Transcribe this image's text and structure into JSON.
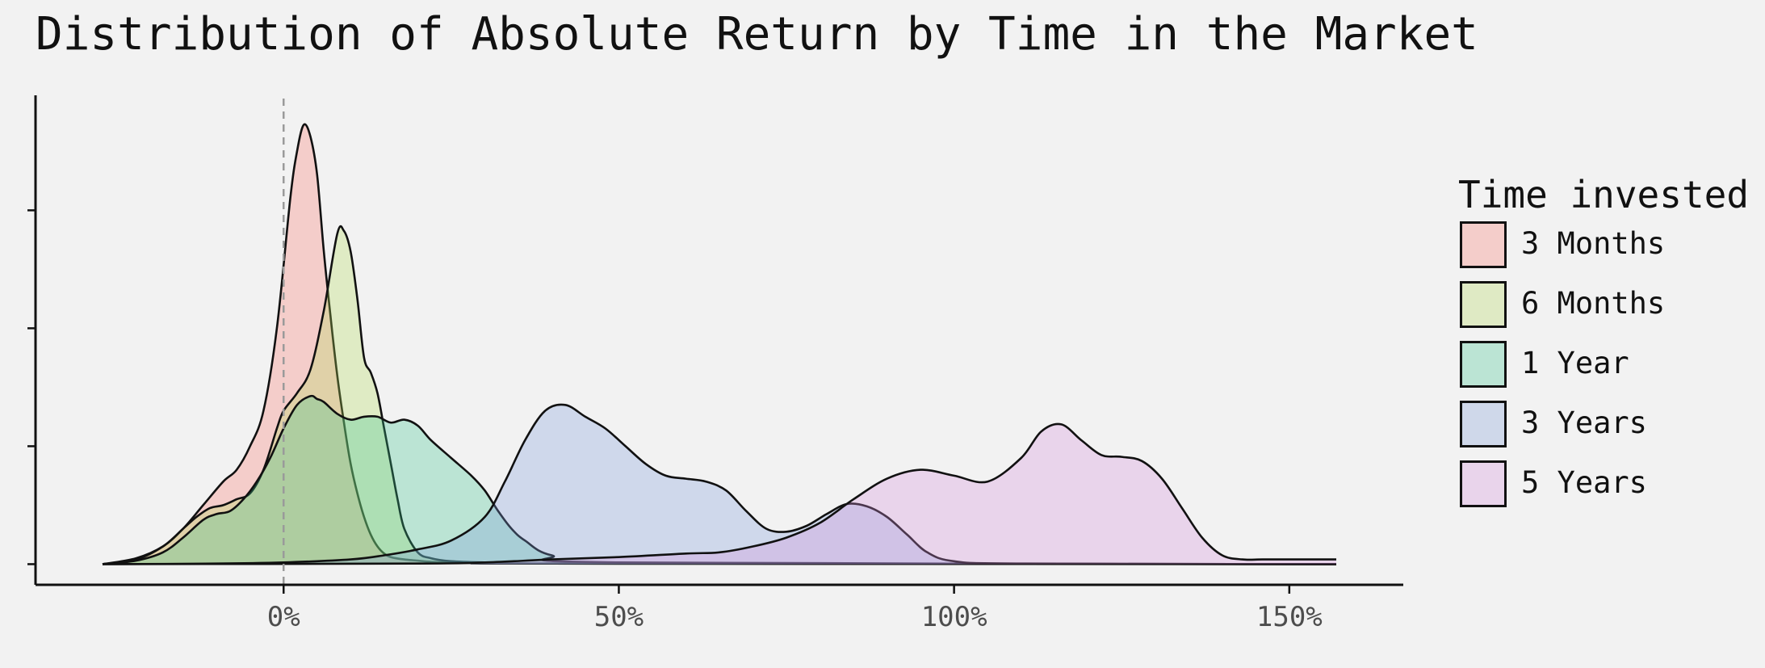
{
  "chart_data": {
    "type": "area",
    "title": "Distribution of Absolute Return by Time in the Market",
    "xlabel": "",
    "ylabel": "",
    "x_tick_labels": [
      "0%",
      "50%",
      "100%",
      "150%"
    ],
    "x_ticks": [
      0,
      50,
      100,
      150
    ],
    "xlim": [
      -37,
      167
    ],
    "ylim": [
      -0.0035,
      0.0795
    ],
    "y_ticks": [
      0,
      0.02,
      0.04,
      0.06
    ],
    "y_tick_labels_shown": false,
    "reference_line": {
      "x": 0,
      "style": "dashed"
    },
    "grid": false,
    "legend": {
      "title": "Time invested",
      "position": "right"
    },
    "series": [
      {
        "name": "3 Months",
        "color": "#F8766D",
        "x": [
          -27,
          -22,
          -18,
          -15,
          -12,
          -9,
          -7,
          -5,
          -3,
          -1,
          1,
          2,
          3,
          4,
          5,
          6,
          7,
          8,
          9,
          10,
          11,
          12,
          13,
          14,
          15,
          16,
          18,
          20,
          22,
          25,
          30,
          40,
          157
        ],
        "y": [
          0,
          0.001,
          0.003,
          0.006,
          0.01,
          0.014,
          0.016,
          0.02,
          0.026,
          0.04,
          0.062,
          0.07,
          0.0745,
          0.0725,
          0.066,
          0.053,
          0.042,
          0.032,
          0.024,
          0.017,
          0.012,
          0.008,
          0.005,
          0.003,
          0.0018,
          0.0012,
          0.0008,
          0.0006,
          0.0004,
          0.0003,
          0.0002,
          0.0001,
          0
        ]
      },
      {
        "name": "6 Months",
        "color": "#B4D95A",
        "x": [
          -27,
          -22,
          -18,
          -15,
          -13,
          -11,
          -9,
          -7,
          -5,
          -3,
          -1,
          0,
          2,
          4,
          6,
          8,
          9,
          10,
          11,
          12,
          13,
          14,
          15,
          16,
          17,
          18,
          20,
          22,
          25,
          30,
          40,
          157
        ],
        "y": [
          0,
          0.0008,
          0.003,
          0.006,
          0.008,
          0.0095,
          0.01,
          0.011,
          0.012,
          0.016,
          0.023,
          0.026,
          0.029,
          0.033,
          0.043,
          0.056,
          0.0565,
          0.053,
          0.045,
          0.035,
          0.0325,
          0.029,
          0.023,
          0.017,
          0.011,
          0.006,
          0.002,
          0.001,
          0.0005,
          0.0003,
          0.0001,
          0
        ]
      },
      {
        "name": "1 Year",
        "color": "#3CC48E",
        "x": [
          -27,
          -22,
          -18,
          -15,
          -12,
          -10,
          -8,
          -6,
          -4,
          -2,
          0,
          2,
          4,
          5,
          6,
          8,
          10,
          12,
          14,
          16,
          18,
          20,
          22,
          25,
          28,
          30,
          32,
          34,
          36,
          40,
          50,
          157
        ],
        "y": [
          0,
          0.0006,
          0.002,
          0.0045,
          0.0075,
          0.0085,
          0.009,
          0.011,
          0.014,
          0.018,
          0.023,
          0.027,
          0.0285,
          0.028,
          0.0275,
          0.0255,
          0.0245,
          0.025,
          0.025,
          0.024,
          0.0245,
          0.0235,
          0.021,
          0.018,
          0.015,
          0.0125,
          0.009,
          0.006,
          0.004,
          0.0015,
          0.0003,
          0
        ]
      },
      {
        "name": "3 Years",
        "color": "#7E9CD9",
        "x": [
          -27,
          -10,
          0,
          10,
          15,
          20,
          25,
          30,
          33,
          36,
          39,
          42,
          45,
          48,
          51,
          54,
          57,
          60,
          63,
          66,
          69,
          72,
          75,
          78,
          81,
          84,
          87,
          90,
          93,
          96,
          100,
          110,
          157
        ],
        "y": [
          0,
          0.0001,
          0.0003,
          0.0008,
          0.0015,
          0.0025,
          0.004,
          0.008,
          0.014,
          0.021,
          0.026,
          0.027,
          0.025,
          0.023,
          0.02,
          0.017,
          0.015,
          0.0145,
          0.014,
          0.0125,
          0.009,
          0.006,
          0.0055,
          0.0065,
          0.0085,
          0.0102,
          0.0098,
          0.008,
          0.005,
          0.002,
          0.0005,
          0.0001,
          0
        ]
      },
      {
        "name": "5 Years",
        "color": "#D48EDB",
        "x": [
          -27,
          20,
          30,
          40,
          50,
          60,
          65,
          70,
          75,
          80,
          85,
          90,
          95,
          100,
          105,
          110,
          113,
          116,
          119,
          122,
          125,
          128,
          131,
          134,
          137,
          140,
          143,
          146,
          150,
          154,
          157
        ],
        "y": [
          0,
          0.0001,
          0.0003,
          0.0008,
          0.0012,
          0.0018,
          0.002,
          0.003,
          0.0045,
          0.007,
          0.011,
          0.0145,
          0.016,
          0.015,
          0.014,
          0.018,
          0.0225,
          0.0237,
          0.021,
          0.0185,
          0.0182,
          0.0175,
          0.0145,
          0.0095,
          0.0045,
          0.0015,
          0.0008,
          0.0008,
          0.0008,
          0.0008,
          0.0008
        ]
      }
    ]
  }
}
